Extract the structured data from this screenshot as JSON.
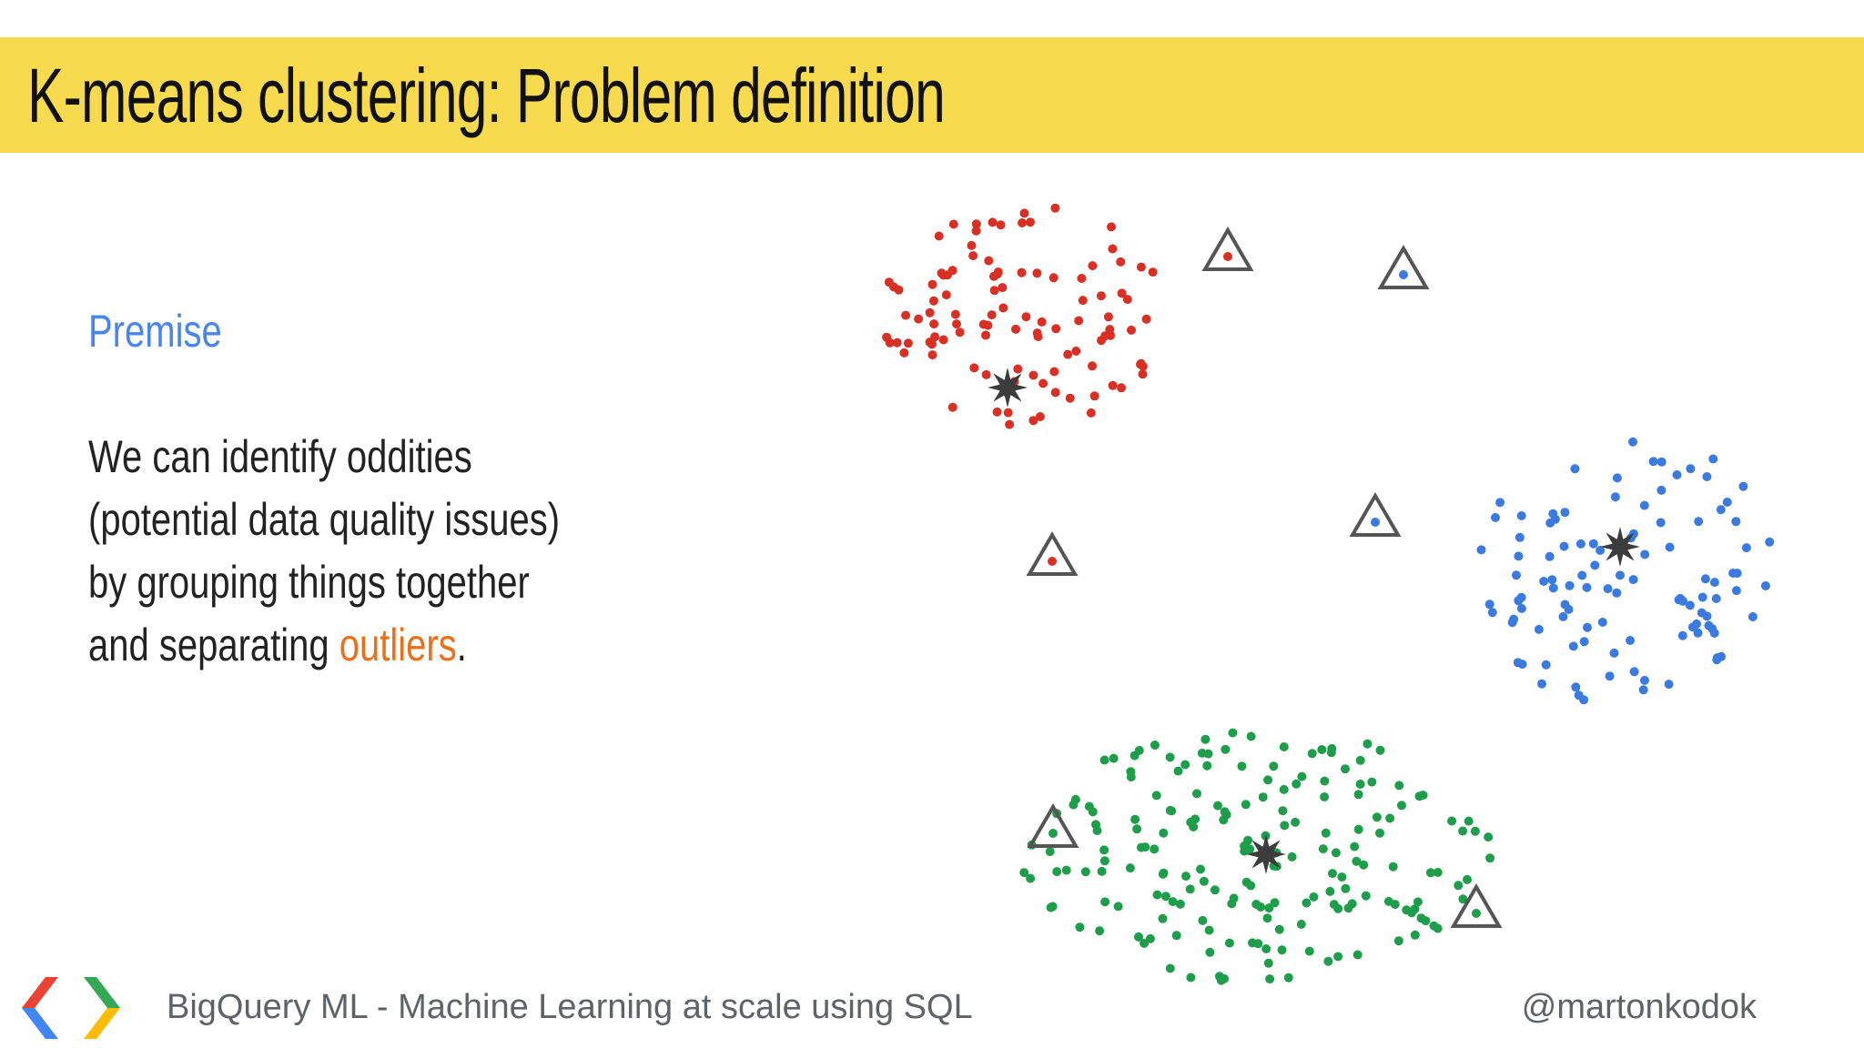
{
  "slide": {
    "title": "K-means clustering: Problem definition",
    "premise_heading": "Premise",
    "body_lines": [
      "We can identify oddities",
      "(potential data quality issues)",
      "by grouping things together"
    ],
    "last_line_prefix": "and separating ",
    "last_line_highlight": "outliers",
    "last_line_suffix": ".",
    "footer_text": "BigQuery ML - Machine Learning at scale using SQL",
    "footer_handle": "@martonkodok",
    "colors": {
      "title_bar": "#f8da4e",
      "premise": "#4a86e8",
      "highlight": "#e8711c",
      "cluster_red": "#d93025",
      "cluster_blue": "#3b7be0",
      "cluster_green": "#1e9e4a",
      "marker": "#3c3c3c"
    },
    "logo_icon": "google-developers-logo-icon"
  }
}
